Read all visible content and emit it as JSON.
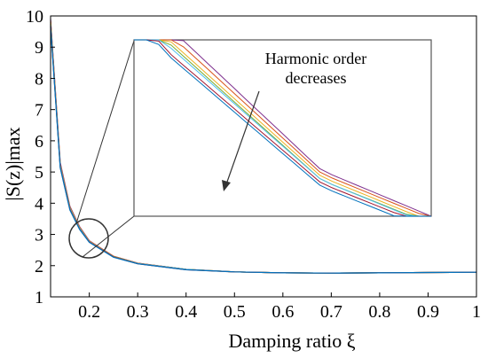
{
  "chart_data": {
    "type": "line",
    "xlabel": "Damping ratio ξ",
    "ylabel": "|S(z)|max",
    "xlim": [
      0.12,
      1.0
    ],
    "ylim": [
      1,
      10
    ],
    "xticks": [
      0.2,
      0.3,
      0.4,
      0.5,
      0.6,
      0.7,
      0.8,
      0.9,
      1
    ],
    "xtick_labels": [
      "0.2",
      "0.3",
      "0.4",
      "0.5",
      "0.6",
      "0.7",
      "0.8",
      "0.9",
      "1"
    ],
    "yticks": [
      1,
      2,
      3,
      4,
      5,
      6,
      7,
      8,
      9,
      10
    ],
    "ytick_labels": [
      "1",
      "2",
      "3",
      "4",
      "5",
      "6",
      "7",
      "8",
      "9",
      "10"
    ],
    "grid": false,
    "colors": [
      "#7e2f8e",
      "#d95319",
      "#edb120",
      "#77ac30",
      "#4dbeee",
      "#a2142f",
      "#0072bd"
    ],
    "series": [
      {
        "color": "#7e2f8e",
        "x": [
          0.12,
          0.14,
          0.16,
          0.18,
          0.2,
          0.25,
          0.3,
          0.4,
          0.5,
          0.6,
          0.7,
          0.8,
          0.9,
          1.0
        ],
        "values": [
          9.9,
          5.3,
          3.9,
          3.25,
          2.8,
          2.3,
          2.08,
          1.88,
          1.8,
          1.77,
          1.76,
          1.77,
          1.78,
          1.79
        ]
      },
      {
        "color": "#d95319",
        "x": [
          0.12,
          0.14,
          0.16,
          0.18,
          0.2,
          0.25,
          0.3,
          0.4,
          0.5,
          0.6,
          0.7,
          0.8,
          0.9,
          1.0
        ],
        "values": [
          9.85,
          5.25,
          3.87,
          3.23,
          2.79,
          2.3,
          2.08,
          1.88,
          1.8,
          1.77,
          1.76,
          1.77,
          1.78,
          1.79
        ]
      },
      {
        "color": "#edb120",
        "x": [
          0.12,
          0.14,
          0.16,
          0.18,
          0.2,
          0.25,
          0.3,
          0.4,
          0.5,
          0.6,
          0.7,
          0.8,
          0.9,
          1.0
        ],
        "values": [
          9.8,
          5.22,
          3.85,
          3.21,
          2.78,
          2.29,
          2.07,
          1.88,
          1.8,
          1.77,
          1.76,
          1.77,
          1.78,
          1.79
        ]
      },
      {
        "color": "#77ac30",
        "x": [
          0.12,
          0.14,
          0.16,
          0.18,
          0.2,
          0.25,
          0.3,
          0.4,
          0.5,
          0.6,
          0.7,
          0.8,
          0.9,
          1.0
        ],
        "values": [
          9.75,
          5.2,
          3.83,
          3.2,
          2.77,
          2.29,
          2.07,
          1.88,
          1.8,
          1.77,
          1.76,
          1.77,
          1.78,
          1.79
        ]
      },
      {
        "color": "#4dbeee",
        "x": [
          0.12,
          0.14,
          0.16,
          0.18,
          0.2,
          0.25,
          0.3,
          0.4,
          0.5,
          0.6,
          0.7,
          0.8,
          0.9,
          1.0
        ],
        "values": [
          9.72,
          5.18,
          3.82,
          3.19,
          2.77,
          2.28,
          2.07,
          1.88,
          1.8,
          1.77,
          1.76,
          1.77,
          1.78,
          1.79
        ]
      },
      {
        "color": "#a2142f",
        "x": [
          0.12,
          0.14,
          0.16,
          0.18,
          0.2,
          0.25,
          0.3,
          0.4,
          0.5,
          0.6,
          0.7,
          0.8,
          0.9,
          1.0
        ],
        "values": [
          9.68,
          5.15,
          3.8,
          3.17,
          2.76,
          2.28,
          2.06,
          1.87,
          1.8,
          1.77,
          1.76,
          1.77,
          1.78,
          1.79
        ]
      },
      {
        "color": "#0072bd",
        "x": [
          0.12,
          0.14,
          0.16,
          0.18,
          0.2,
          0.25,
          0.3,
          0.4,
          0.5,
          0.6,
          0.7,
          0.8,
          0.9,
          1.0
        ],
        "values": [
          9.65,
          5.13,
          3.78,
          3.16,
          2.75,
          2.27,
          2.06,
          1.87,
          1.8,
          1.77,
          1.76,
          1.77,
          1.78,
          1.79
        ]
      }
    ],
    "inset": {
      "annotation_line1": "Harmonic order",
      "annotation_line2": "decreases"
    }
  }
}
